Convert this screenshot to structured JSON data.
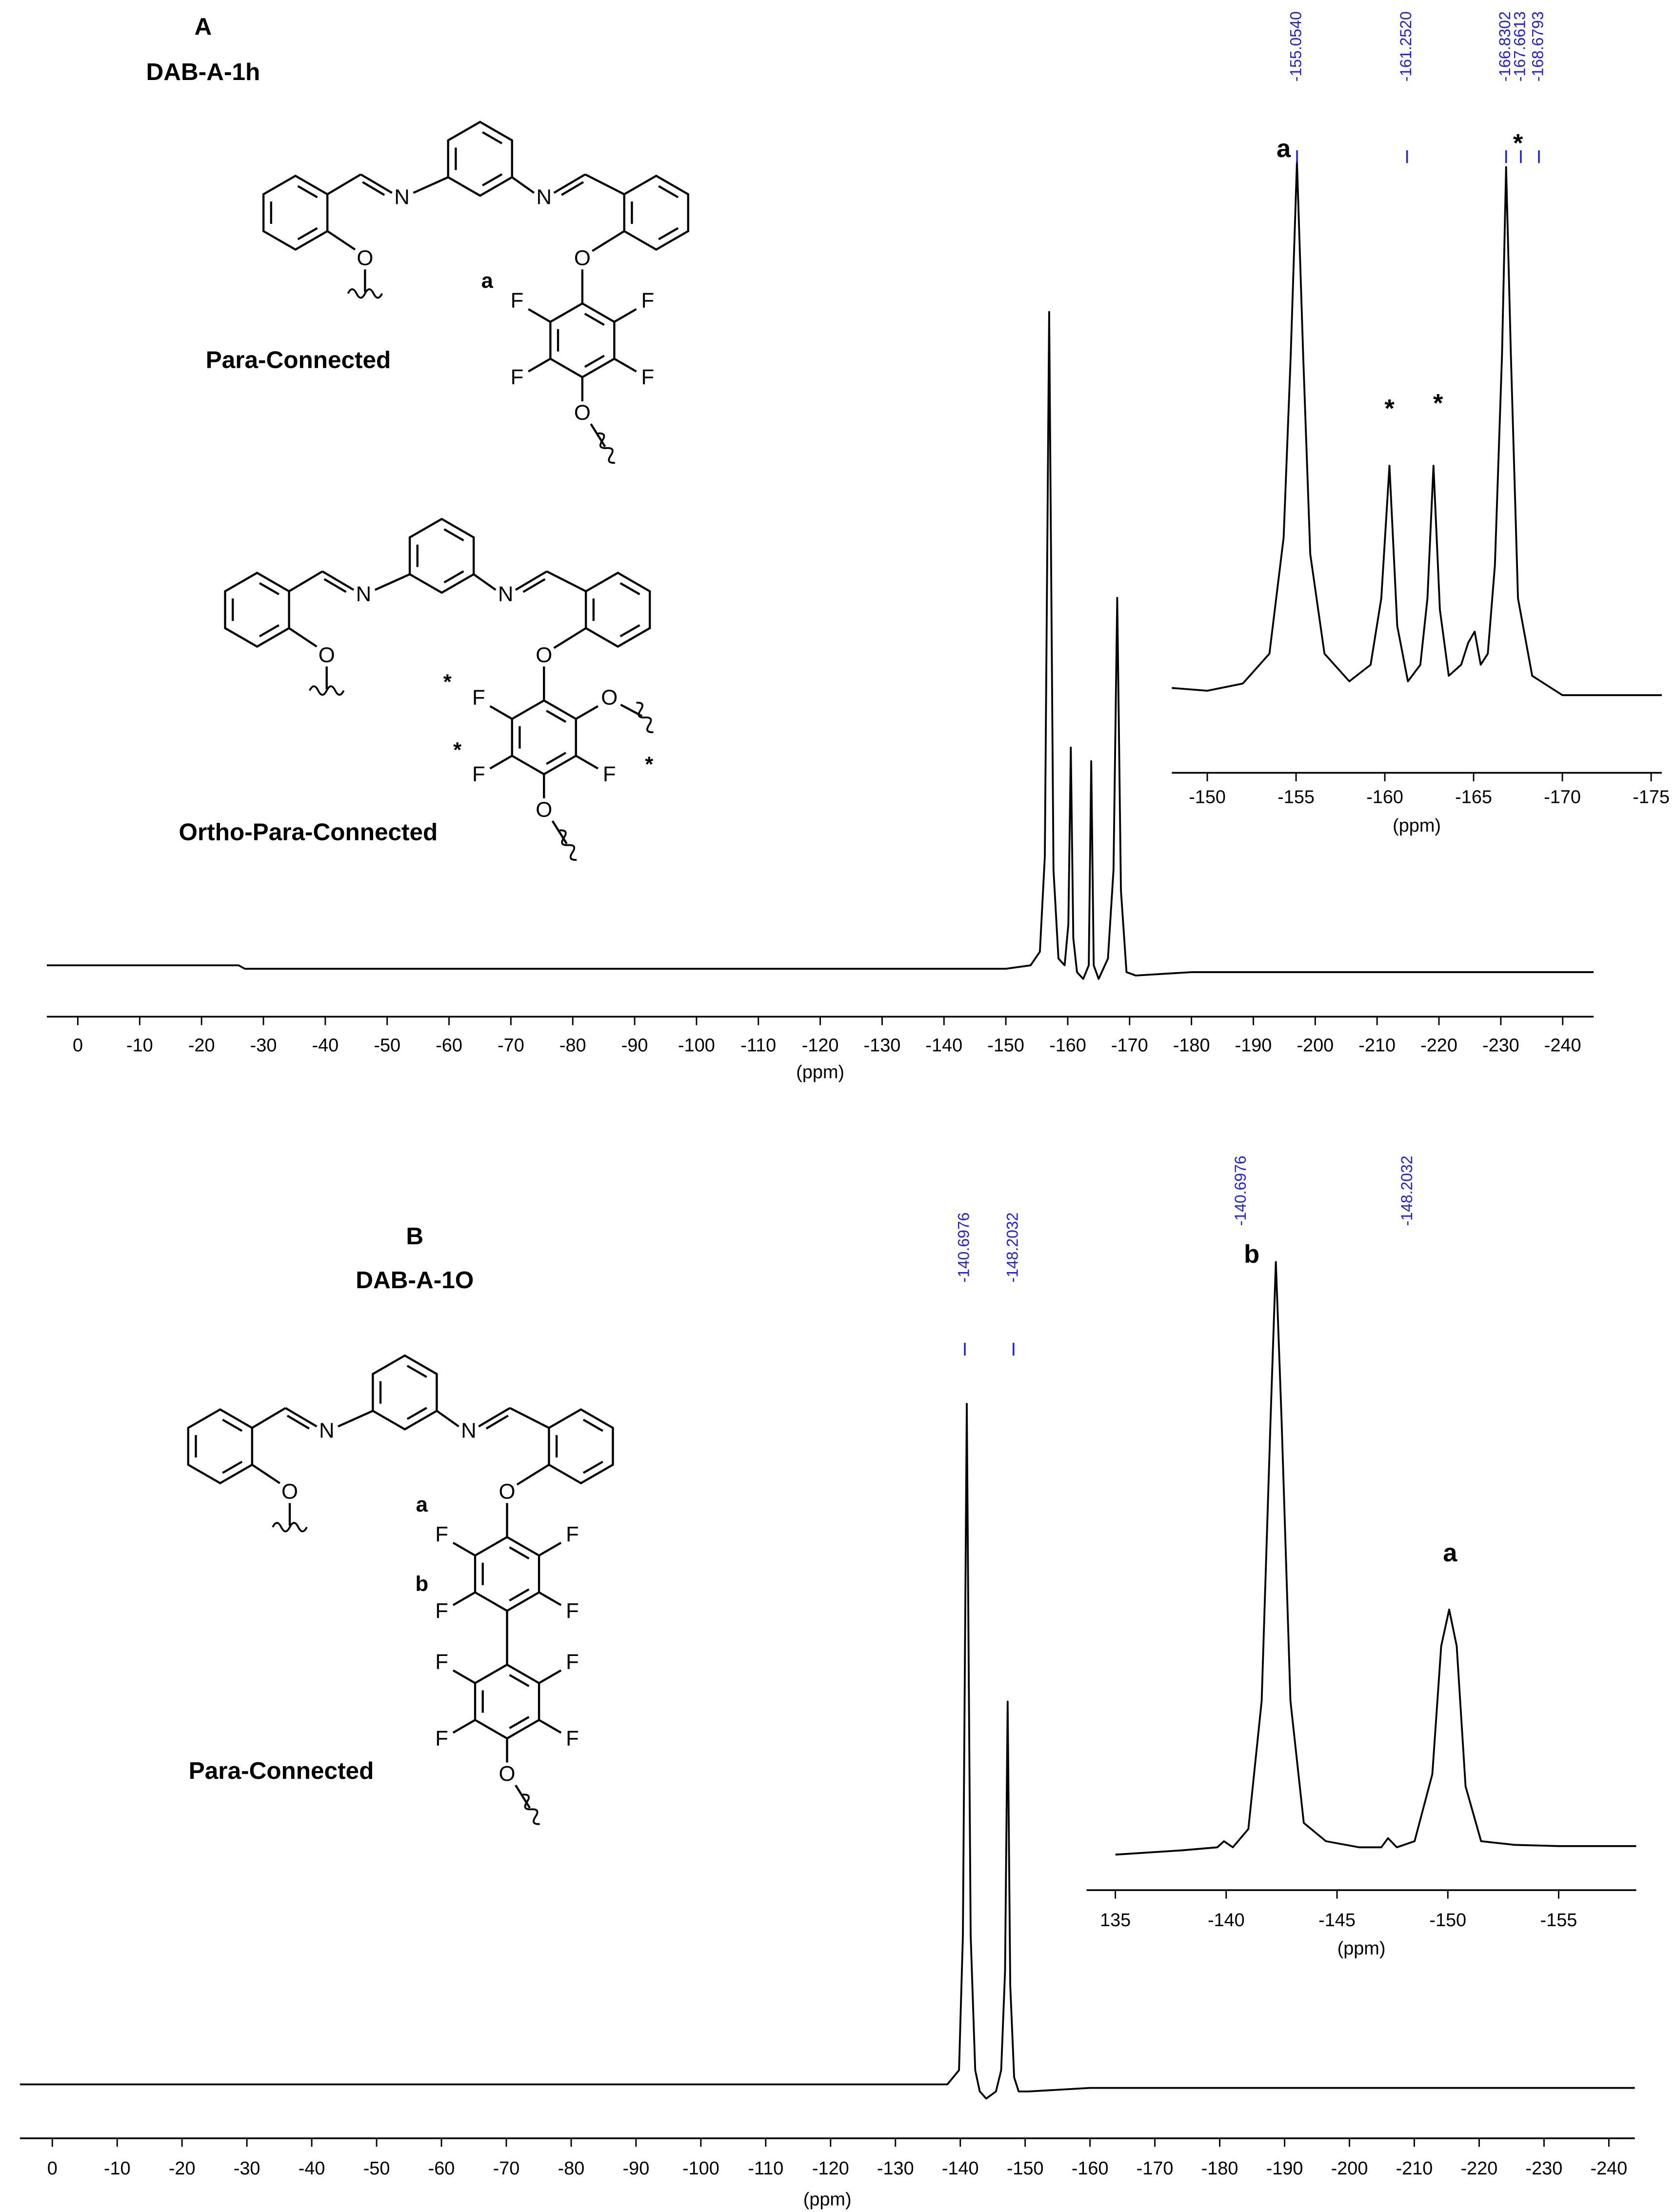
{
  "chart_data": [
    {
      "type": "line",
      "title": "A",
      "subtitle": "DAB-A-1h",
      "xlabel": "(ppm)",
      "xlim": [
        5,
        -245
      ],
      "xticks": [
        0,
        -10,
        -20,
        -30,
        -40,
        -50,
        -60,
        -70,
        -80,
        -90,
        -100,
        -110,
        -120,
        -130,
        -140,
        -150,
        -160,
        -170,
        -180,
        -190,
        -200,
        -210,
        -220,
        -230,
        -240
      ],
      "ylim": [
        0,
        100
      ],
      "series": [
        {
          "color": "#000000",
          "x": [
            5,
            -20,
            -26,
            -27,
            -60,
            -100,
            -140,
            -150,
            -154,
            -155.5,
            -156.3,
            -157,
            -157.7,
            -158.5,
            -159.5,
            -160.1,
            -160.5,
            -160.9,
            -161.5,
            -162.5,
            -163.4,
            -163.8,
            -164.2,
            -165,
            -166.5,
            -167.4,
            -168,
            -168.6,
            -169.5,
            -171,
            -180,
            -200,
            -245
          ],
          "values": [
            4,
            4,
            4,
            3.5,
            3.5,
            3.5,
            3.5,
            3.5,
            4,
            6,
            20,
            100,
            18,
            5,
            4,
            10,
            36,
            8,
            3,
            2,
            4,
            34,
            4,
            2,
            5,
            18,
            58,
            15,
            3,
            2.5,
            3,
            3,
            3
          ]
        }
      ]
    },
    {
      "type": "line",
      "xlabel": "(ppm)",
      "xlim": [
        -148,
        -175.6
      ],
      "xticks": [
        -150,
        -155,
        -160,
        -165,
        -170,
        -175
      ],
      "ylim": [
        0,
        100
      ],
      "peak_label_color": "#1f1fe0",
      "series": [
        {
          "color": "#000000",
          "x": [
            -148,
            -150,
            -152,
            -153.5,
            -154.3,
            -154.7,
            -155.05,
            -155.4,
            -155.8,
            -156.6,
            -158,
            -159.2,
            -159.8,
            -160.26,
            -160.7,
            -161.3,
            -162,
            -162.4,
            -162.74,
            -163.1,
            -163.6,
            -164.3,
            -164.7,
            -165.06,
            -165.4,
            -165.8,
            -166.2,
            -166.6,
            -166.83,
            -167.1,
            -167.5,
            -168.3,
            -170,
            -172,
            -175.6
          ],
          "values": [
            3.8,
            3.3,
            4.6,
            10,
            31,
            64,
            99,
            64,
            28,
            10,
            5,
            8,
            20,
            44,
            15,
            5,
            8,
            20,
            44,
            18,
            6,
            8,
            12,
            14,
            8,
            10,
            26,
            64,
            98,
            64,
            20,
            6,
            2.5,
            2.5,
            2.5
          ]
        }
      ],
      "peak_labels": [
        {
          "value": -155.054,
          "label": "-155.0540"
        },
        {
          "value": -161.252,
          "label": "-161.2520"
        },
        -166.8302,
        -167.6613,
        -168.6793
      ],
      "annotations": [
        {
          "text": "a",
          "x": -154.3,
          "y": 101
        },
        {
          "text": "*",
          "x": -160.26,
          "y": 54
        },
        {
          "text": "*",
          "x": -163,
          "y": 55
        },
        {
          "text": "*",
          "x": -167.5,
          "y": 102
        }
      ]
    },
    {
      "type": "line",
      "title": "B",
      "subtitle": "DAB-A-1O",
      "xlabel": "(ppm)",
      "xlim": [
        5,
        -244
      ],
      "xticks": [
        0,
        -10,
        -20,
        -30,
        -40,
        -50,
        -60,
        -70,
        -80,
        -90,
        -100,
        -110,
        -120,
        -130,
        -140,
        -150,
        -160,
        -170,
        -180,
        -190,
        -200,
        -210,
        -220,
        -230,
        -240
      ],
      "ylim": [
        0,
        100
      ],
      "peak_label_color": "#1f1fe0",
      "series": [
        {
          "color": "#000000",
          "x": [
            5,
            -60,
            -120,
            -138,
            -139.8,
            -140.4,
            -141,
            -141.6,
            -142.3,
            -143,
            -144,
            -145.5,
            -146.3,
            -146.9,
            -147.3,
            -147.7,
            -148.3,
            -149,
            -150.5,
            -160,
            -200,
            -244
          ],
          "values": [
            4,
            4,
            4,
            4,
            6,
            25,
            100,
            25,
            6,
            3,
            2,
            3,
            6,
            20,
            58,
            18,
            5,
            3,
            3,
            3.5,
            3.5,
            3.5
          ]
        }
      ],
      "peak_labels": [
        -140.6976,
        -148.2032
      ]
    },
    {
      "type": "line",
      "xlabel": "(ppm)",
      "xlim": [
        -133.7,
        -158.5
      ],
      "xticks": [
        {
          "value": -135,
          "label": "135"
        },
        -140,
        -145,
        -150,
        -155
      ],
      "ylim": [
        0,
        100
      ],
      "peak_label_color": "#1f1fe0",
      "series": [
        {
          "color": "#000000",
          "x": [
            -135,
            -138,
            -139.6,
            -139.9,
            -140.3,
            -141,
            -141.6,
            -142,
            -142.24,
            -142.5,
            -142.9,
            -143.5,
            -144.5,
            -146,
            -147,
            -147.3,
            -147.7,
            -148.5,
            -149.3,
            -149.7,
            -150.06,
            -150.4,
            -150.8,
            -151.5,
            -153,
            -155,
            -158.5
          ],
          "values": [
            2.8,
            3.5,
            4,
            5,
            4,
            7,
            28,
            74,
            100,
            74,
            28,
            8,
            5,
            4,
            4,
            5.5,
            4,
            5,
            16,
            37,
            43,
            37,
            14,
            5,
            4.4,
            4.2,
            4.2
          ]
        }
      ],
      "peak_labels": [
        -140.6976,
        -148.2032
      ],
      "annotations": [
        {
          "text": "b",
          "x": -141.15,
          "y": 101
        },
        {
          "text": "a",
          "x": -150.1,
          "y": 52
        }
      ]
    }
  ],
  "structures": [
    {
      "atoms": [
        "N",
        "N",
        "O",
        "O",
        "F",
        "F",
        "F",
        "F",
        "O"
      ],
      "labels": [
        "a"
      ],
      "caption": "Para-Connected"
    },
    {
      "atoms": [
        "N",
        "N",
        "O",
        "O",
        "F",
        "O",
        "F",
        "F",
        "O"
      ],
      "labels": [
        "*",
        "*",
        "*"
      ],
      "caption": "Ortho-Para-Connected"
    },
    {
      "atoms": [
        "N",
        "N",
        "O",
        "O",
        "F",
        "F",
        "F",
        "F",
        "F",
        "F",
        "F",
        "F",
        "O"
      ],
      "labels": [
        "a",
        "b"
      ],
      "caption": "Para-Connected"
    }
  ]
}
